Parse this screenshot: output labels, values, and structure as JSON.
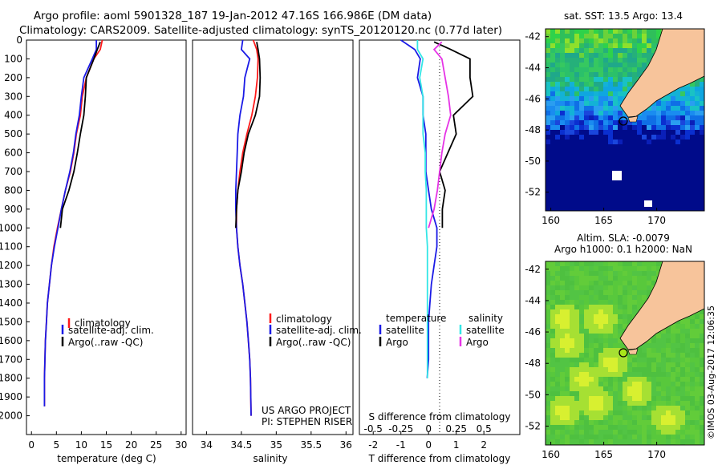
{
  "header": {
    "line1": "Argo profile: aoml 5901328_187 19-Jan-2012 47.16S 166.986E (DM data)",
    "line2": "Climatology: CARS2009. Satellite-adjusted climatology: synTS_20120120.nc (0.77d later)"
  },
  "colors": {
    "climatology": "#ff1a1a",
    "satellite": "#1a1ae6",
    "argo": "#000000",
    "salinity_satellite": "#33e6e6",
    "salinity_argo": "#e633e6",
    "land": "#f7c49b",
    "deep_blue": "#000b8a"
  },
  "chart_data": [
    {
      "type": "line",
      "name": "temperature-panel",
      "xlabel": "temperature (deg C)",
      "ylabel": "",
      "xlim": [
        -1,
        31
      ],
      "ylim": [
        2100,
        0
      ],
      "xticks": [
        "0",
        "5",
        "10",
        "15",
        "20",
        "25",
        "30"
      ],
      "yticks": [
        "0",
        "100",
        "200",
        "300",
        "400",
        "500",
        "600",
        "700",
        "800",
        "900",
        "1000",
        "1100",
        "1200",
        "1300",
        "1400",
        "1500",
        "1600",
        "1700",
        "1800",
        "1900",
        "2000"
      ],
      "legend": [
        "climatology",
        "satellite-adj. clim.",
        "Argo(..raw -QC)"
      ],
      "series": [
        {
          "key": "clim",
          "x": [
            14.2,
            13.8,
            12.5,
            11.0,
            10.2,
            9.8,
            9.0,
            8.5,
            7.8,
            6.8,
            6.0,
            5.2,
            4.5,
            4.0,
            3.6,
            3.2,
            3.0,
            2.8,
            2.7,
            2.6,
            2.6
          ],
          "y": [
            0,
            50,
            100,
            200,
            300,
            400,
            500,
            600,
            700,
            800,
            900,
            1000,
            1100,
            1200,
            1300,
            1400,
            1500,
            1600,
            1700,
            1800,
            1950
          ]
        },
        {
          "key": "sat",
          "x": [
            13.0,
            13.0,
            12.2,
            10.5,
            10.0,
            9.6,
            8.9,
            8.4,
            7.7,
            6.8,
            6.0,
            5.3,
            4.6,
            4.0,
            3.6,
            3.2,
            3.0,
            2.8,
            2.7,
            2.6,
            2.6
          ],
          "y": [
            0,
            50,
            100,
            200,
            300,
            400,
            500,
            600,
            700,
            800,
            900,
            1000,
            1100,
            1200,
            1300,
            1400,
            1500,
            1600,
            1700,
            1800,
            1950
          ]
        },
        {
          "key": "argo",
          "x": [
            13.8,
            13.2,
            12.5,
            11.0,
            10.8,
            10.5,
            9.8,
            9.2,
            8.5,
            7.5,
            6.2,
            5.8
          ],
          "y": [
            10,
            50,
            100,
            200,
            300,
            400,
            500,
            600,
            700,
            800,
            900,
            1000
          ]
        }
      ]
    },
    {
      "type": "line",
      "name": "salinity-panel",
      "xlabel": "salinity",
      "xlim": [
        33.8,
        36.1
      ],
      "ylim": [
        2100,
        0
      ],
      "xticks": [
        "34",
        "34.5",
        "35",
        "35.5",
        "36"
      ],
      "legend": [
        "climatology",
        "satellite-adj. clim.",
        "Argo(..raw -QC)"
      ],
      "series": [
        {
          "key": "clim",
          "x": [
            34.67,
            34.72,
            34.74,
            34.73,
            34.7,
            34.65,
            34.58,
            34.52,
            34.48,
            34.45,
            34.43,
            34.43,
            34.45,
            34.48,
            34.52,
            34.55,
            34.58,
            34.6,
            34.62,
            34.63,
            34.64
          ],
          "y": [
            0,
            50,
            100,
            200,
            300,
            400,
            500,
            600,
            700,
            800,
            900,
            1000,
            1100,
            1200,
            1300,
            1400,
            1500,
            1600,
            1700,
            1800,
            2000
          ]
        },
        {
          "key": "sat",
          "x": [
            34.52,
            34.5,
            34.62,
            34.55,
            34.53,
            34.48,
            34.45,
            34.44,
            34.43,
            34.42,
            34.42,
            34.43,
            34.45,
            34.48,
            34.52,
            34.55,
            34.58,
            34.6,
            34.62,
            34.63,
            34.64
          ],
          "y": [
            0,
            50,
            100,
            200,
            300,
            400,
            500,
            600,
            700,
            800,
            900,
            1000,
            1100,
            1200,
            1300,
            1400,
            1500,
            1600,
            1700,
            1800,
            2000
          ]
        },
        {
          "key": "argo",
          "x": [
            34.72,
            34.74,
            34.76,
            34.77,
            34.76,
            34.7,
            34.6,
            34.54,
            34.5,
            34.45,
            34.43,
            34.42
          ],
          "y": [
            10,
            50,
            100,
            200,
            300,
            400,
            500,
            600,
            700,
            800,
            900,
            1000
          ]
        }
      ]
    },
    {
      "type": "line",
      "name": "difference-panel",
      "xlabel": "T difference from climatology",
      "xlabel_top": "S difference from climatology",
      "t_xlim": [
        -2.5,
        3.3
      ],
      "ylim": [
        2100,
        0
      ],
      "t_xticks": [
        "-2",
        "-1",
        "0",
        "1",
        "2"
      ],
      "s_xticks": [
        "-0.5",
        "-0.25",
        "0",
        "0.25",
        "0.5"
      ],
      "legend": {
        "temperature_title": "temperature",
        "salinity_title": "salinity",
        "entries": [
          "satellite",
          "Argo",
          "satellite",
          "Argo"
        ]
      },
      "series": [
        {
          "key": "t_sat",
          "x": [
            -1.0,
            -0.5,
            -0.3,
            -0.4,
            -0.2,
            -0.2,
            -0.1,
            -0.1,
            -0.1,
            0.0,
            0.1,
            0.3,
            0.3,
            0.2,
            0.1,
            0.05,
            0.0,
            0.0,
            0.0,
            -0.05
          ],
          "y": [
            0,
            50,
            100,
            200,
            300,
            400,
            500,
            600,
            700,
            800,
            900,
            1000,
            1100,
            1200,
            1300,
            1400,
            1500,
            1600,
            1700,
            1800
          ]
        },
        {
          "key": "t_argo",
          "x": [
            0.2,
            0.8,
            1.5,
            1.5,
            1.6,
            0.9,
            1.0,
            0.7,
            0.4,
            0.6,
            0.5,
            0.5
          ],
          "y": [
            10,
            50,
            100,
            200,
            300,
            400,
            500,
            600,
            700,
            800,
            900,
            1000
          ]
        },
        {
          "key": "s_sat",
          "x": [
            -0.1,
            -0.1,
            -0.05,
            -0.08,
            -0.05,
            -0.05,
            -0.05,
            -0.03,
            -0.03,
            -0.02,
            -0.02,
            -0.02,
            -0.01,
            -0.01,
            -0.01,
            -0.01,
            -0.01,
            -0.01,
            -0.01,
            -0.01
          ],
          "y": [
            0,
            50,
            100,
            200,
            300,
            400,
            500,
            600,
            700,
            800,
            900,
            1000,
            1100,
            1200,
            1300,
            1400,
            1500,
            1600,
            1700,
            1800
          ]
        },
        {
          "key": "s_argo",
          "x": [
            0.12,
            0.05,
            0.12,
            0.15,
            0.18,
            0.2,
            0.15,
            0.12,
            0.1,
            0.08,
            0.05,
            0.0
          ],
          "y": [
            10,
            50,
            100,
            200,
            300,
            400,
            500,
            600,
            700,
            800,
            900,
            1000
          ]
        }
      ]
    },
    {
      "type": "heatmap",
      "name": "sst-map",
      "title": "sat. SST: 13.5 Argo: 13.4",
      "xticks": [
        "160",
        "165",
        "170"
      ],
      "yticks": [
        "-42",
        "-44",
        "-46",
        "-48",
        "-50",
        "-52"
      ],
      "xlim": [
        159.5,
        174.5
      ],
      "ylim": [
        -53.2,
        -41.5
      ],
      "float_position": {
        "lon": 166.986,
        "lat": -47.16
      }
    },
    {
      "type": "heatmap",
      "name": "sla-map",
      "title": "Altim. SLA: -0.0079",
      "subtitle": "Argo h1000: 0.1 h2000: NaN",
      "xticks": [
        "160",
        "165",
        "170"
      ],
      "yticks": [
        "-42",
        "-44",
        "-46",
        "-48",
        "-50",
        "-52"
      ],
      "xlim": [
        159.5,
        174.5
      ],
      "ylim": [
        -53.2,
        -41.5
      ],
      "float_position": {
        "lon": 166.986,
        "lat": -47.16
      }
    }
  ],
  "notes": {
    "project": "US ARGO PROJECT",
    "pi": "PI: STEPHEN RISER",
    "stamp": "©IMOS 03-Aug-2017 12:06:35"
  }
}
